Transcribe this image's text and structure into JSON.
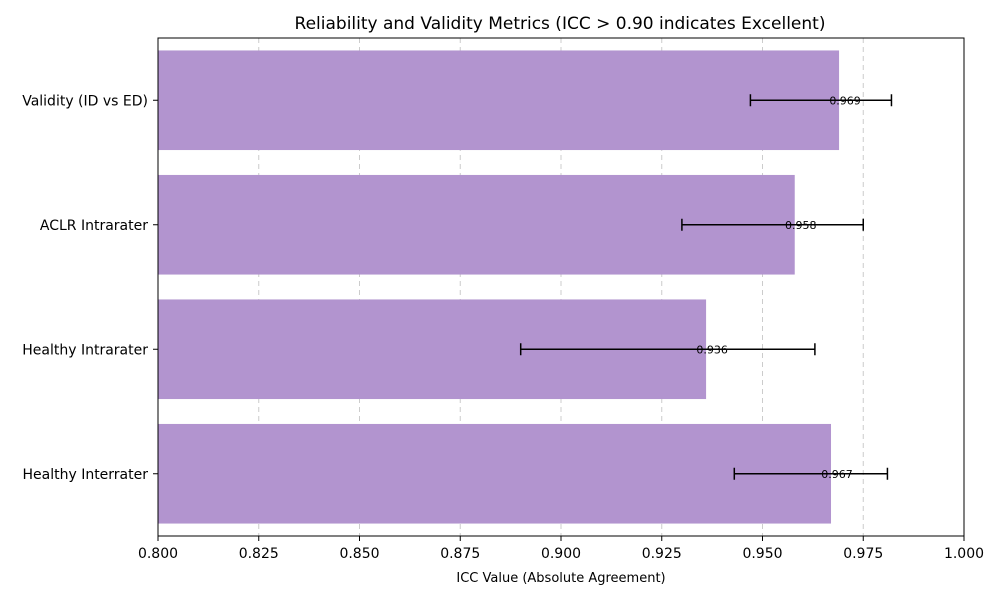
{
  "chart_data": {
    "type": "bar",
    "orientation": "horizontal",
    "title": "Reliability and Validity Metrics (ICC > 0.90 indicates Excellent)",
    "xlabel": "ICC Value (Absolute Agreement)",
    "ylabel": "",
    "xlim": [
      0.8,
      1.0
    ],
    "xticks": [
      "0.800",
      "0.825",
      "0.850",
      "0.875",
      "0.900",
      "0.925",
      "0.950",
      "0.975",
      "1.000"
    ],
    "grid": "x-dashed",
    "bar_color": "#b294cf",
    "categories": [
      "Validity (ID vs ED)",
      "ACLR Intrarater",
      "Healthy Intrarater",
      "Healthy Interrater"
    ],
    "values": [
      0.969,
      0.958,
      0.936,
      0.967
    ],
    "data_labels": [
      "0.969",
      "0.958",
      "0.936",
      "0.967"
    ],
    "ci_lower": [
      0.947,
      0.93,
      0.89,
      0.943
    ],
    "ci_upper": [
      0.982,
      0.975,
      0.963,
      0.981
    ]
  }
}
